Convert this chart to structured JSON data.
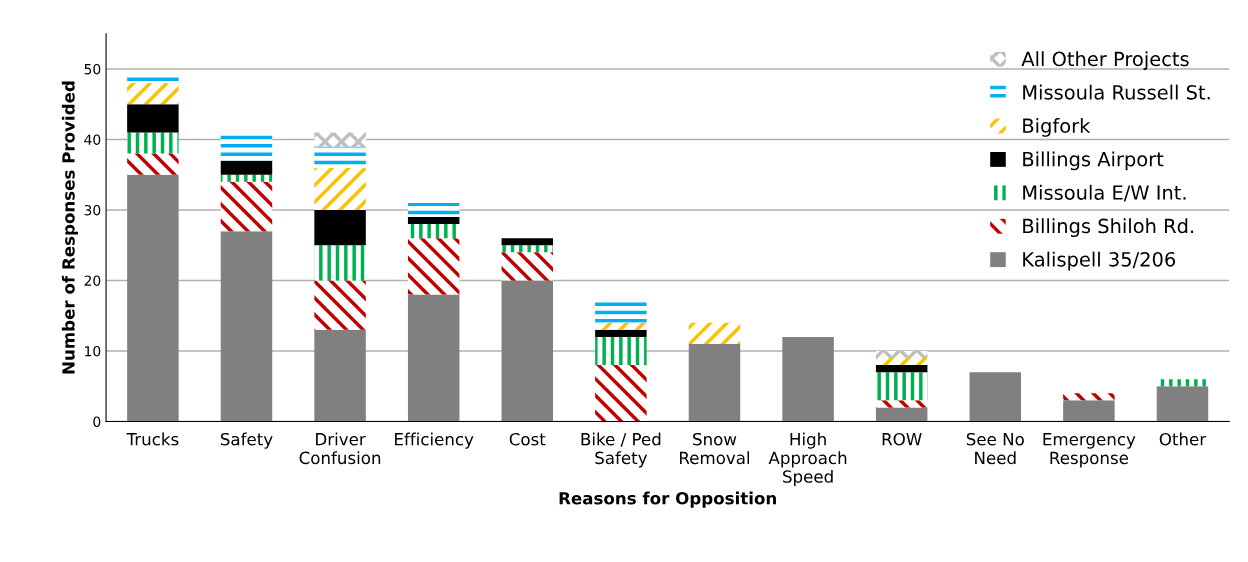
{
  "chart_data": {
    "type": "bar",
    "stacked": true,
    "xlabel": "Reasons for Opposition",
    "ylabel": "Number of Responses Provided",
    "categories": [
      "Trucks",
      "Safety",
      "Driver\nConfusion",
      "Efficiency",
      "Cost",
      "Bike / Ped\nSafety",
      "Snow\nRemoval",
      "High\nApproach\nSpeed",
      "ROW",
      "See No\nNeed",
      "Emergency\nResponse",
      "Other"
    ],
    "series": [
      {
        "name": "Kalispell 35/206",
        "color": "#808080",
        "values": [
          35,
          27,
          13,
          18,
          20,
          0,
          11,
          12,
          2,
          7,
          3,
          5
        ]
      },
      {
        "name": "Billings Shiloh Rd.",
        "color": "#c00000",
        "values": [
          3,
          7,
          7,
          8,
          4,
          8,
          0,
          0,
          1,
          0,
          1,
          0
        ]
      },
      {
        "name": "Missoula E/W Int.",
        "color": "#00b050",
        "values": [
          3,
          1,
          5,
          2,
          1,
          4,
          0,
          0,
          4,
          0,
          0,
          1
        ]
      },
      {
        "name": "Billings Airport",
        "color": "#000000",
        "values": [
          4,
          2,
          5,
          1,
          1,
          1,
          0,
          0,
          1,
          0,
          0,
          0
        ]
      },
      {
        "name": "Bigfork",
        "color": "#ffc000",
        "values": [
          3,
          0,
          6,
          0,
          0,
          1,
          3,
          0,
          1,
          0,
          0,
          0
        ]
      },
      {
        "name": "Missoula Russell St.",
        "color": "#00b0f0",
        "values": [
          1,
          4,
          3,
          2,
          0,
          3,
          0,
          0,
          0,
          0,
          0,
          0
        ]
      },
      {
        "name": "All Other Projects",
        "color": "#bfbfbf",
        "values": [
          0,
          0,
          2,
          0,
          0,
          0,
          0,
          0,
          1,
          0,
          0,
          0
        ]
      }
    ],
    "ylim": [
      0,
      55
    ],
    "yticks": [
      0,
      10,
      20,
      30,
      40,
      50
    ],
    "grid": "y",
    "legend": "top right"
  }
}
